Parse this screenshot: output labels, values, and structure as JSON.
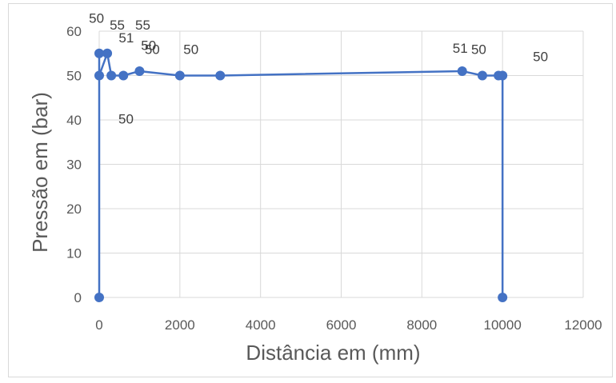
{
  "chart_data": {
    "type": "scatter",
    "xlabel": "Distância em (mm)",
    "ylabel": "Pressão em (bar)",
    "xlim": [
      0,
      12000
    ],
    "ylim": [
      0,
      60
    ],
    "x_ticks": [
      0,
      2000,
      4000,
      6000,
      8000,
      10000,
      12000
    ],
    "y_ticks": [
      0,
      10,
      20,
      30,
      40,
      50,
      60
    ],
    "grid": true,
    "legend": "none",
    "series_color": "#4472c4",
    "series": [
      {
        "points": [
          {
            "x": 0,
            "y": 0
          },
          {
            "x": 0,
            "y": 55,
            "label": "55"
          },
          {
            "x": 0,
            "y": 50,
            "label": "50"
          },
          {
            "x": 200,
            "y": 55,
            "label": "55"
          },
          {
            "x": 300,
            "y": 50,
            "label": "50"
          },
          {
            "x": 600,
            "y": 50,
            "label": "50"
          },
          {
            "x": 1000,
            "y": 51,
            "label": "51"
          },
          {
            "x": 2000,
            "y": 50,
            "label": "50"
          },
          {
            "x": 3000,
            "y": 50,
            "label": "50"
          },
          {
            "x": 9000,
            "y": 51,
            "label": "51"
          },
          {
            "x": 9500,
            "y": 50,
            "label": "50"
          },
          {
            "x": 9900,
            "y": 50
          },
          {
            "x": 10000,
            "y": 50,
            "label": "50"
          },
          {
            "x": 10000,
            "y": 0
          }
        ]
      }
    ]
  }
}
